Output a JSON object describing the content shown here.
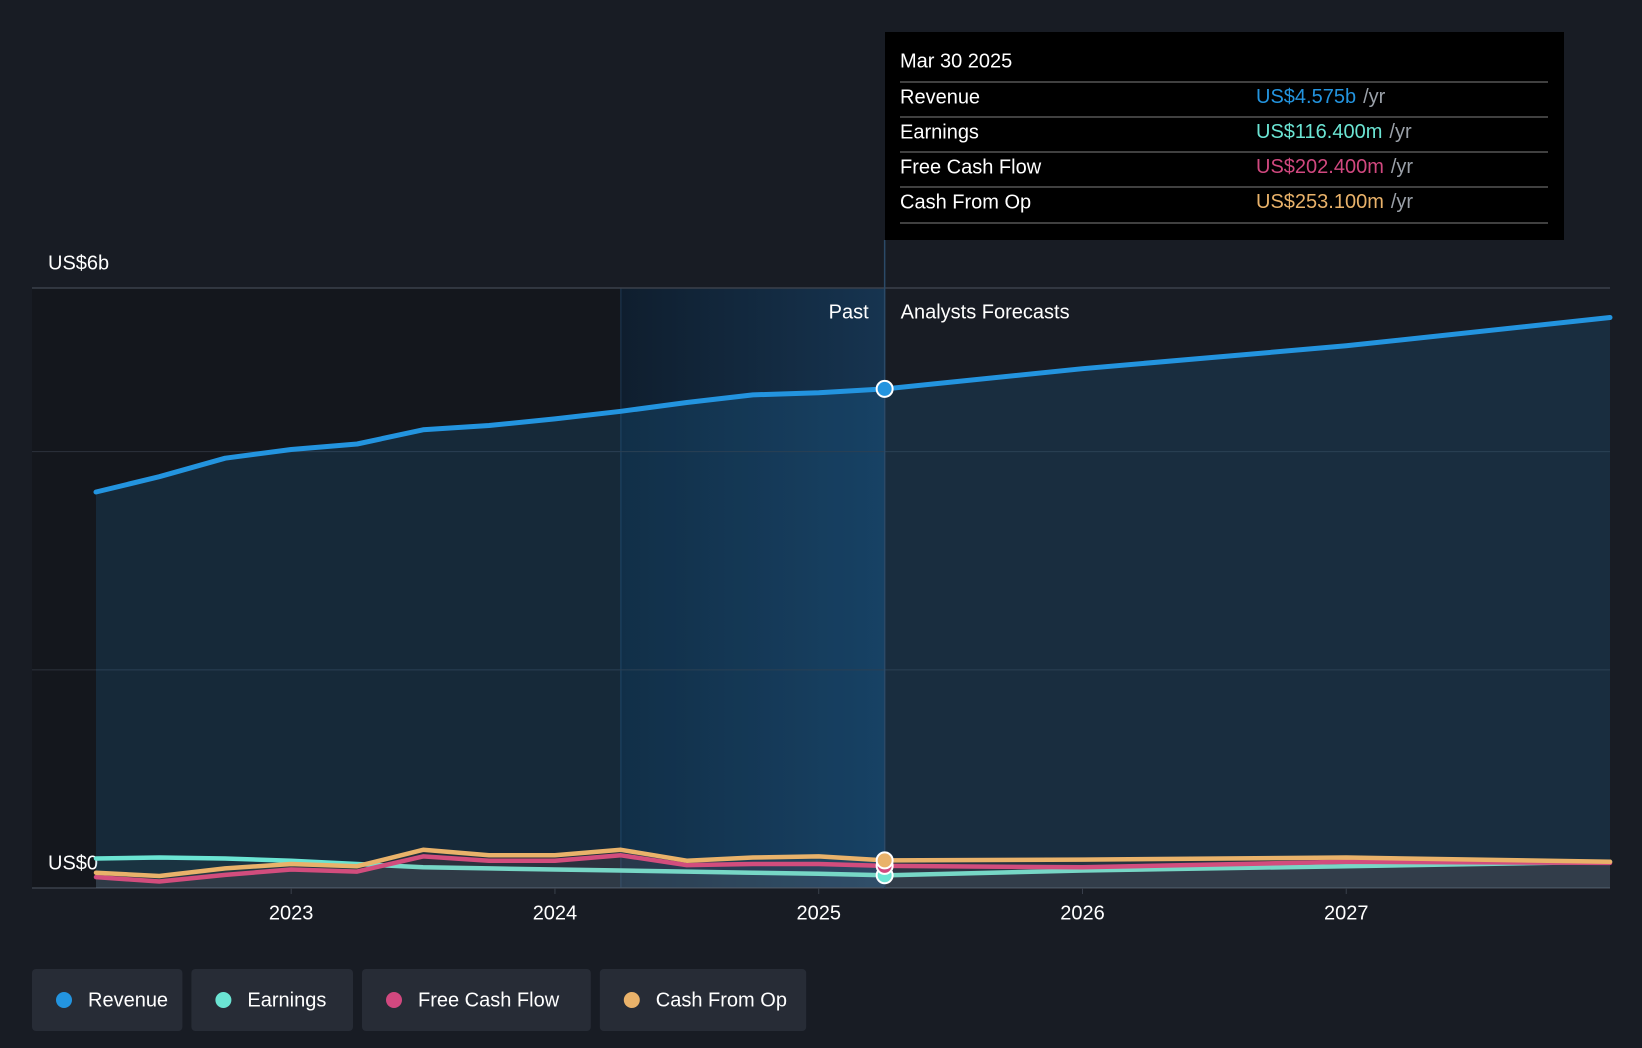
{
  "chart_data": {
    "type": "line",
    "x": [
      2022.26,
      2022.5,
      2022.75,
      2023,
      2023.25,
      2023.5,
      2023.75,
      2024,
      2024.25,
      2024.5,
      2024.75,
      2025,
      2025.25,
      2026,
      2027,
      2028
    ],
    "series": [
      {
        "name": "Revenue",
        "color": "#2394df",
        "values": [
          3.63,
          3.77,
          3.94,
          4.02,
          4.07,
          4.2,
          4.24,
          4.3,
          4.37,
          4.45,
          4.52,
          4.54,
          4.575,
          4.76,
          4.97,
          5.23
        ]
      },
      {
        "name": "Earnings",
        "color": "#6be4d3",
        "values": [
          0.27,
          0.28,
          0.27,
          0.25,
          0.22,
          0.19,
          0.18,
          0.17,
          0.16,
          0.15,
          0.14,
          0.13,
          0.1164,
          0.16,
          0.2,
          0.24
        ]
      },
      {
        "name": "Free Cash Flow",
        "color": "#d1487f",
        "values": [
          0.1,
          0.06,
          0.12,
          0.17,
          0.15,
          0.29,
          0.25,
          0.25,
          0.3,
          0.21,
          0.22,
          0.22,
          0.2024,
          0.19,
          0.24,
          0.23
        ]
      },
      {
        "name": "Cash From Op",
        "color": "#e9b26a",
        "values": [
          0.14,
          0.11,
          0.18,
          0.22,
          0.2,
          0.35,
          0.3,
          0.3,
          0.35,
          0.25,
          0.28,
          0.29,
          0.2531,
          0.26,
          0.28,
          0.24
        ]
      }
    ],
    "xlim": [
      2022.26,
      2028
    ],
    "xticks": [
      2023,
      2024,
      2025,
      2026,
      2027
    ],
    "ylim": [
      0,
      5.5
    ],
    "yticks": [
      {
        "value": 0,
        "label": "US$0"
      },
      {
        "value": 5.5,
        "label": "US$6b"
      }
    ],
    "ygrid": [
      2,
      4
    ],
    "past_start": 2024.25,
    "forecast_start": 2025.25,
    "past_label": "Past",
    "forecast_label": "Analysts Forecasts",
    "tooltip": {
      "title": "Mar 30 2025",
      "unit": "/yr",
      "value_labels": [
        "US$4.575b",
        "US$116.400m",
        "US$202.400m",
        "US$253.100m"
      ]
    }
  }
}
